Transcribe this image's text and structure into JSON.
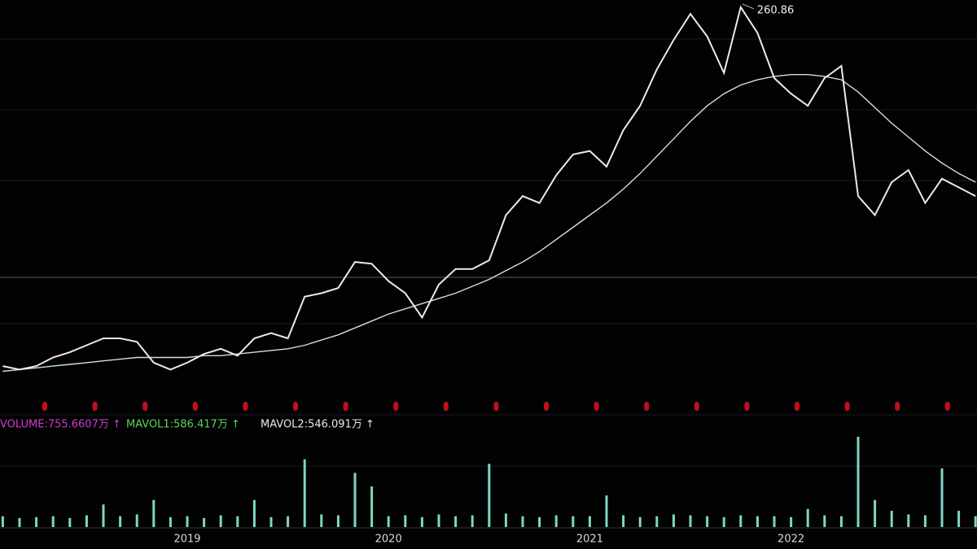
{
  "chart_data": [
    {
      "type": "line",
      "categories": [
        null,
        null,
        null,
        null,
        null,
        null,
        null,
        null,
        null,
        null,
        null,
        "2019",
        null,
        null,
        null,
        null,
        null,
        null,
        null,
        null,
        null,
        null,
        null,
        "2020",
        null,
        null,
        null,
        null,
        null,
        null,
        null,
        null,
        null,
        null,
        null,
        "2021",
        null,
        null,
        null,
        null,
        null,
        null,
        null,
        null,
        null,
        null,
        null,
        "2022",
        null,
        null,
        null,
        null,
        null,
        null,
        null,
        null,
        null,
        null,
        null
      ],
      "series": [
        {
          "color": "#f2e6ea",
          "values": [
            54,
            52,
            54,
            59,
            62,
            66,
            70,
            70,
            68,
            56,
            52,
            56,
            61,
            64,
            60,
            70,
            73,
            70,
            94,
            96,
            99,
            114,
            113,
            103,
            96,
            82,
            101,
            110,
            110,
            115,
            141,
            152,
            148,
            164,
            176,
            178,
            169,
            190,
            204,
            225,
            242,
            257,
            244,
            223,
            260.86,
            246,
            220,
            211,
            204,
            220,
            227,
            152,
            141,
            160,
            167,
            148,
            162,
            157,
            152
          ]
        },
        {
          "color": "#cfe3d2",
          "values": [
            51,
            52,
            53,
            54,
            55,
            56,
            57,
            58,
            59,
            59,
            59,
            59,
            60,
            60,
            61,
            62,
            63,
            64,
            66,
            69,
            72,
            76,
            80,
            84,
            87,
            90,
            93,
            96,
            100,
            104,
            109,
            114,
            120,
            127,
            134,
            141,
            148,
            156,
            165,
            175,
            185,
            195,
            204,
            211,
            216,
            219,
            221,
            222,
            222,
            221,
            219,
            212,
            203,
            194,
            186,
            178,
            171,
            165,
            160
          ]
        }
      ],
      "ylim": [
        40,
        265
      ],
      "peak": 260.86
    },
    {
      "type": "bar",
      "indicators": [
        {
          "text": "VOLUME:755.6607万 ↑",
          "color": "#d23ad2"
        },
        {
          "text": "MAVOL1:586.417万 ↑",
          "color": "#5fd35f"
        },
        {
          "text": "MAVOL2:546.091万 ↑",
          "color": "#e8e8e8"
        }
      ],
      "color": "#7fd6c8",
      "values": [
        12,
        10,
        11,
        12,
        10,
        13,
        25,
        12,
        14,
        30,
        11,
        12,
        10,
        13,
        12,
        30,
        11,
        12,
        75,
        14,
        13,
        60,
        45,
        12,
        13,
        11,
        14,
        12,
        13,
        70,
        15,
        12,
        11,
        13,
        12,
        12,
        35,
        13,
        11,
        12,
        14,
        13,
        12,
        11,
        13,
        12,
        12,
        11,
        20,
        13,
        12,
        100,
        30,
        18,
        14,
        13,
        65,
        18,
        12
      ],
      "ylim": [
        0,
        100
      ]
    }
  ]
}
